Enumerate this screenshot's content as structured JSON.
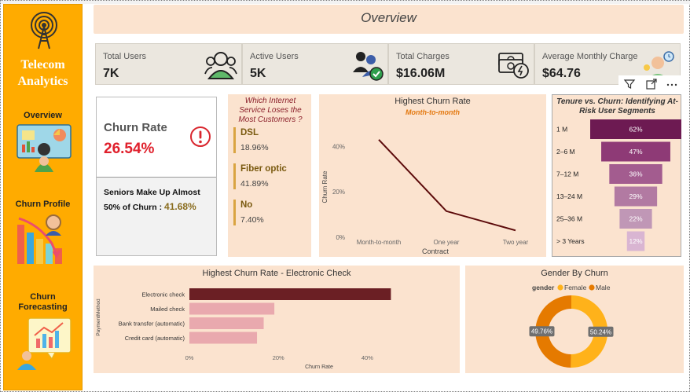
{
  "sidebar": {
    "brand_line1": "Telecom",
    "brand_line2": "Analytics",
    "nav": [
      {
        "label_line1": "Overview",
        "label_line2": "",
        "icon": "presentation-icon"
      },
      {
        "label_line1": "Churn Profile",
        "label_line2": "",
        "icon": "bar-chart-user-icon"
      },
      {
        "label_line1": "Churn",
        "label_line2": "Forecasting",
        "icon": "forecast-chart-icon"
      }
    ]
  },
  "header": {
    "title": "Overview"
  },
  "kpis": [
    {
      "label": "Total Users",
      "value": "7K",
      "icon": "users-icon"
    },
    {
      "label": "Active Users",
      "value": "5K",
      "icon": "active-users-check-icon"
    },
    {
      "label": "Total Charges",
      "value": "$16.06M",
      "icon": "money-charges-icon"
    },
    {
      "label": "Average Monthly Charge",
      "value": "$64.76",
      "icon": "monthly-charge-icon"
    }
  ],
  "churn_card": {
    "label": "Churn Rate",
    "value": "26.54%",
    "seniors_text_line1": "Seniors Make Up Almost",
    "seniors_text_line2": "50% of Churn :",
    "seniors_value": "41.68%",
    "alert_icon": "alert-circle-icon"
  },
  "internet": {
    "title_line1": "Which Internet",
    "title_line2": "Service Loses the",
    "title_line3": "Most Customers ?",
    "items": [
      {
        "name": "DSL",
        "value": "18.96%"
      },
      {
        "name": "Fiber optic",
        "value": "41.89%"
      },
      {
        "name": "No",
        "value": "7.40%"
      }
    ]
  },
  "toolbar": {
    "icons": [
      "filter-icon",
      "focus-mode-icon",
      "more-options-icon"
    ]
  },
  "colors": {
    "sidebar": "#ffab00",
    "panel": "#fbe3cf",
    "kpi_bg": "#ebe7df",
    "churn_red": "#e0202c",
    "line": "#5c0a0a",
    "bar_primary": "#6b1f24",
    "bar_secondary": "#e9a9ae",
    "female": "#ffb21a",
    "male": "#e57a00"
  },
  "chart_data": [
    {
      "type": "line",
      "title": "Highest Churn Rate",
      "subtitle": "Month-to-month",
      "xlabel": "Contract",
      "ylabel": "Churn Rate",
      "categories": [
        "Month-to-month",
        "One year",
        "Two year"
      ],
      "values": [
        43,
        11.5,
        3
      ],
      "ylim": [
        0,
        45
      ],
      "yticks": [
        "0%",
        "20%",
        "40%"
      ],
      "grid": false
    },
    {
      "type": "bar",
      "orientation": "horizontal-funnel",
      "title": "Tenure vs. Churn: Identifying At-Risk User Segments",
      "categories": [
        "1 M",
        "2–6 M",
        "7–12 M",
        "13–24 M",
        "25–36 M",
        "> 3 Years"
      ],
      "values": [
        62,
        47,
        36,
        29,
        22,
        12
      ],
      "labels": [
        "62%",
        "47%",
        "36%",
        "29%",
        "22%",
        "12%"
      ],
      "colors": [
        "#6d1a52",
        "#8e3a76",
        "#a35c8f",
        "#b27aa2",
        "#c097b6",
        "#d9b5d2"
      ]
    },
    {
      "type": "bar",
      "orientation": "horizontal",
      "title": "Highest Churn Rate - Electronic Check",
      "xlabel": "Churn Rate",
      "ylabel": "PaymentMethod",
      "categories": [
        "Electronic check",
        "Mailed check",
        "Bank transfer (automatic)",
        "Credit card (automatic)"
      ],
      "values": [
        45.3,
        19.1,
        16.7,
        15.2
      ],
      "xlim": [
        0,
        50
      ],
      "xticks": [
        "0%",
        "20%",
        "40%"
      ]
    },
    {
      "type": "pie",
      "style": "donut",
      "title": "Gender By Churn",
      "legend_title": "gender",
      "legend_position": "top",
      "categories": [
        "Female",
        "Male"
      ],
      "values": [
        50.24,
        49.76
      ],
      "labels": [
        "50.24%",
        "49.76%"
      ]
    }
  ]
}
